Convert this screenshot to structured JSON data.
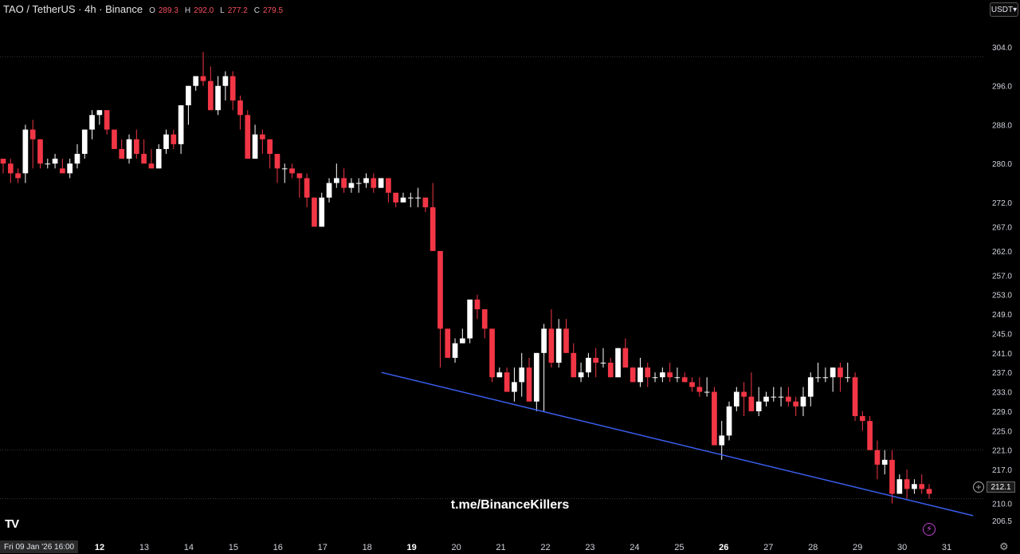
{
  "header": {
    "symbol": "TAO / TetherUS · 4h · Binance",
    "o_label": "O",
    "o_value": "289.3",
    "h_label": "H",
    "h_value": "292.0",
    "l_label": "L",
    "l_value": "277.2",
    "c_label": "C",
    "c_value": "279.5"
  },
  "currency_button": "USDT",
  "watermark": "t.me/BinanceKillers",
  "last_price_label": "212.1",
  "crosshair_date_label": "Fri 09 Jan '26   16:00",
  "logo_text": "TV",
  "colors": {
    "up": "#ffffff",
    "down": "#f23645",
    "trendline": "#3b5ff0",
    "grid": "#3a3a3a",
    "background": "#000000"
  },
  "chart_data": {
    "type": "candlestick",
    "timeframe": "4h",
    "x_ticks": [
      "12",
      "13",
      "14",
      "15",
      "16",
      "17",
      "18",
      "19",
      "20",
      "21",
      "22",
      "23",
      "24",
      "25",
      "26",
      "27",
      "28",
      "29",
      "30",
      "31"
    ],
    "y_ticks": [
      "304.0",
      "296.0",
      "288.0",
      "280.0",
      "272.0",
      "267.0",
      "262.0",
      "257.0",
      "253.0",
      "249.0",
      "245.0",
      "241.0",
      "237.0",
      "233.0",
      "229.0",
      "225.0",
      "221.0",
      "217.0",
      "213.5",
      "210.0",
      "206.5"
    ],
    "ylim": [
      204.0,
      307.0
    ],
    "horizontal_levels": [
      302.0,
      221.0,
      211.0
    ],
    "last_price": 212.1,
    "candles": [
      [
        281,
        281,
        278,
        280
      ],
      [
        280,
        281,
        276,
        278
      ],
      [
        278,
        279,
        276,
        277
      ],
      [
        278,
        288,
        276,
        287
      ],
      [
        287,
        289,
        279,
        285
      ],
      [
        285,
        285,
        279,
        280
      ],
      [
        280,
        281,
        279,
        280
      ],
      [
        280,
        282,
        279,
        281
      ],
      [
        279,
        281,
        278,
        278
      ],
      [
        278,
        281,
        277,
        280
      ],
      [
        280,
        284,
        279,
        282
      ],
      [
        282,
        287,
        281,
        287
      ],
      [
        287,
        291,
        285,
        290
      ],
      [
        290,
        291,
        288,
        291
      ],
      [
        291,
        291,
        286,
        287
      ],
      [
        287,
        287,
        283,
        283
      ],
      [
        283,
        285,
        281,
        281
      ],
      [
        281,
        286,
        280,
        285
      ],
      [
        285,
        287,
        281,
        282
      ],
      [
        282,
        285,
        280,
        280
      ],
      [
        280,
        283,
        279,
        279
      ],
      [
        279,
        284,
        279,
        283
      ],
      [
        283,
        287,
        282,
        286
      ],
      [
        286,
        287,
        283,
        284
      ],
      [
        284,
        292,
        282,
        292
      ],
      [
        292,
        296,
        288,
        296
      ],
      [
        296,
        298,
        295,
        298
      ],
      [
        298,
        303,
        296,
        297
      ],
      [
        297,
        300,
        291,
        291
      ],
      [
        291,
        298,
        290,
        296
      ],
      [
        296,
        299,
        293,
        298
      ],
      [
        298,
        299,
        291,
        293
      ],
      [
        293,
        294,
        287,
        290
      ],
      [
        290,
        291,
        281,
        281
      ],
      [
        281,
        288,
        281,
        286
      ],
      [
        286,
        287,
        282,
        285
      ],
      [
        285,
        285,
        279,
        282
      ],
      [
        282,
        282,
        276,
        279
      ],
      [
        279,
        280,
        276,
        279
      ],
      [
        279,
        280,
        277,
        278
      ],
      [
        278,
        278,
        273,
        277
      ],
      [
        277,
        278,
        271,
        273
      ],
      [
        273,
        273,
        267,
        267
      ],
      [
        267,
        274,
        267,
        273
      ],
      [
        273,
        277,
        272,
        276
      ],
      [
        276,
        280,
        275,
        277
      ],
      [
        277,
        279,
        274,
        275
      ],
      [
        275,
        277,
        274,
        276
      ],
      [
        276,
        277,
        274,
        276
      ],
      [
        276,
        278,
        275,
        277
      ],
      [
        277,
        278,
        274,
        275
      ],
      [
        275,
        277,
        275,
        277
      ],
      [
        277,
        277,
        272,
        274
      ],
      [
        274,
        274,
        271,
        272
      ],
      [
        272,
        274,
        272,
        273
      ],
      [
        273,
        274,
        271,
        273
      ],
      [
        273,
        275,
        271,
        273
      ],
      [
        273,
        273,
        270,
        271
      ],
      [
        271,
        276,
        262,
        262
      ],
      [
        262,
        262,
        238,
        246
      ],
      [
        246,
        246,
        240,
        240
      ],
      [
        240,
        244,
        239,
        243
      ],
      [
        243,
        246,
        243,
        244
      ],
      [
        244,
        252,
        243,
        252
      ],
      [
        252,
        253,
        248,
        250
      ],
      [
        250,
        250,
        244,
        246
      ],
      [
        246,
        246,
        235,
        236
      ],
      [
        236,
        238,
        236,
        237
      ],
      [
        237,
        238,
        233,
        233
      ],
      [
        233,
        238,
        231,
        235
      ],
      [
        235,
        241,
        232,
        238
      ],
      [
        238,
        240,
        231,
        231
      ],
      [
        231,
        241,
        229,
        241
      ],
      [
        241,
        247,
        229,
        246
      ],
      [
        246,
        250,
        238,
        239
      ],
      [
        239,
        248,
        238,
        246
      ],
      [
        246,
        248,
        241,
        241
      ],
      [
        241,
        243,
        236,
        236
      ],
      [
        236,
        239,
        235,
        237
      ],
      [
        237,
        241,
        236,
        240
      ],
      [
        240,
        242,
        236,
        239
      ],
      [
        239,
        242,
        238,
        239
      ],
      [
        239,
        240,
        236,
        236
      ],
      [
        236,
        242,
        236,
        242
      ],
      [
        242,
        244,
        238,
        238
      ],
      [
        238,
        238,
        235,
        235
      ],
      [
        235,
        240,
        234,
        238
      ],
      [
        238,
        239,
        234,
        236
      ],
      [
        236,
        237,
        235,
        236
      ],
      [
        236,
        238,
        235,
        237
      ],
      [
        237,
        239,
        235,
        236
      ],
      [
        236,
        238,
        235,
        236
      ],
      [
        236,
        237,
        235,
        235
      ],
      [
        235,
        236,
        233,
        234
      ],
      [
        234,
        236,
        232,
        233
      ],
      [
        233,
        236,
        232,
        233
      ],
      [
        233,
        234,
        222,
        222
      ],
      [
        222,
        227,
        219,
        224
      ],
      [
        224,
        231,
        223,
        230
      ],
      [
        230,
        234,
        229,
        233
      ],
      [
        233,
        235,
        228,
        232
      ],
      [
        232,
        237,
        229,
        229
      ],
      [
        229,
        234,
        228,
        231
      ],
      [
        231,
        233,
        230,
        232
      ],
      [
        232,
        234,
        231,
        232
      ],
      [
        232,
        234,
        230,
        232
      ],
      [
        232,
        234,
        230,
        231
      ],
      [
        231,
        232,
        228,
        230
      ],
      [
        230,
        234,
        228,
        232
      ],
      [
        232,
        237,
        230,
        236
      ],
      [
        236,
        239,
        235,
        236
      ],
      [
        236,
        238,
        235,
        236
      ],
      [
        236,
        238,
        233,
        238
      ],
      [
        238,
        239,
        233,
        236
      ],
      [
        236,
        239,
        235,
        236
      ],
      [
        236,
        237,
        227,
        228
      ],
      [
        228,
        229,
        225,
        227
      ],
      [
        227,
        228,
        221,
        221
      ],
      [
        221,
        223,
        215,
        218
      ],
      [
        218,
        221,
        216,
        219
      ],
      [
        219,
        221,
        210,
        212
      ],
      [
        212,
        216,
        212,
        215
      ],
      [
        215,
        217,
        211,
        213
      ],
      [
        213,
        215,
        212,
        214
      ],
      [
        214,
        216,
        212,
        213
      ],
      [
        213,
        214,
        211,
        212
      ]
    ],
    "trendline": [
      [
        237.0,
        0.374
      ],
      [
        207.5,
        0.954
      ]
    ]
  }
}
